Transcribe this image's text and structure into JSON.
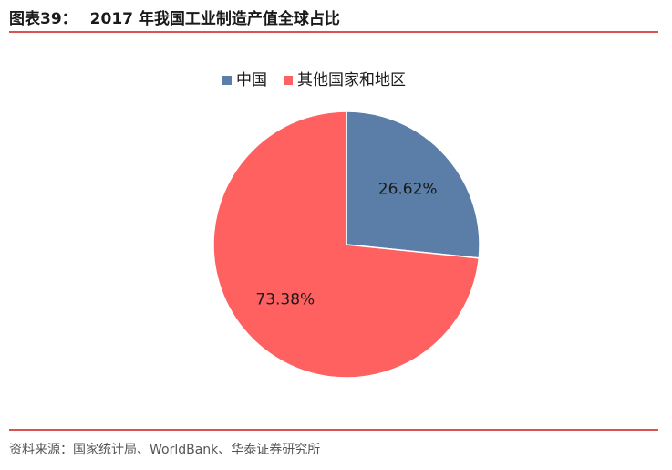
{
  "figure": {
    "label": "图表39：",
    "title": "2017 年我国工业制造产值全球占比",
    "source": "资料来源：国家统计局、WorldBank、华泰证券研究所"
  },
  "chart_data": {
    "type": "pie",
    "title": "2017 年我国工业制造产值全球占比",
    "legend_position": "top",
    "start_angle": "12 o'clock, clockwise",
    "slices": [
      {
        "name": "中国",
        "value": 26.62,
        "label": "26.62%",
        "color": "#5b7ea8"
      },
      {
        "name": "其他国家和地区",
        "value": 73.38,
        "label": "73.38%",
        "color": "#ff6161"
      }
    ]
  }
}
